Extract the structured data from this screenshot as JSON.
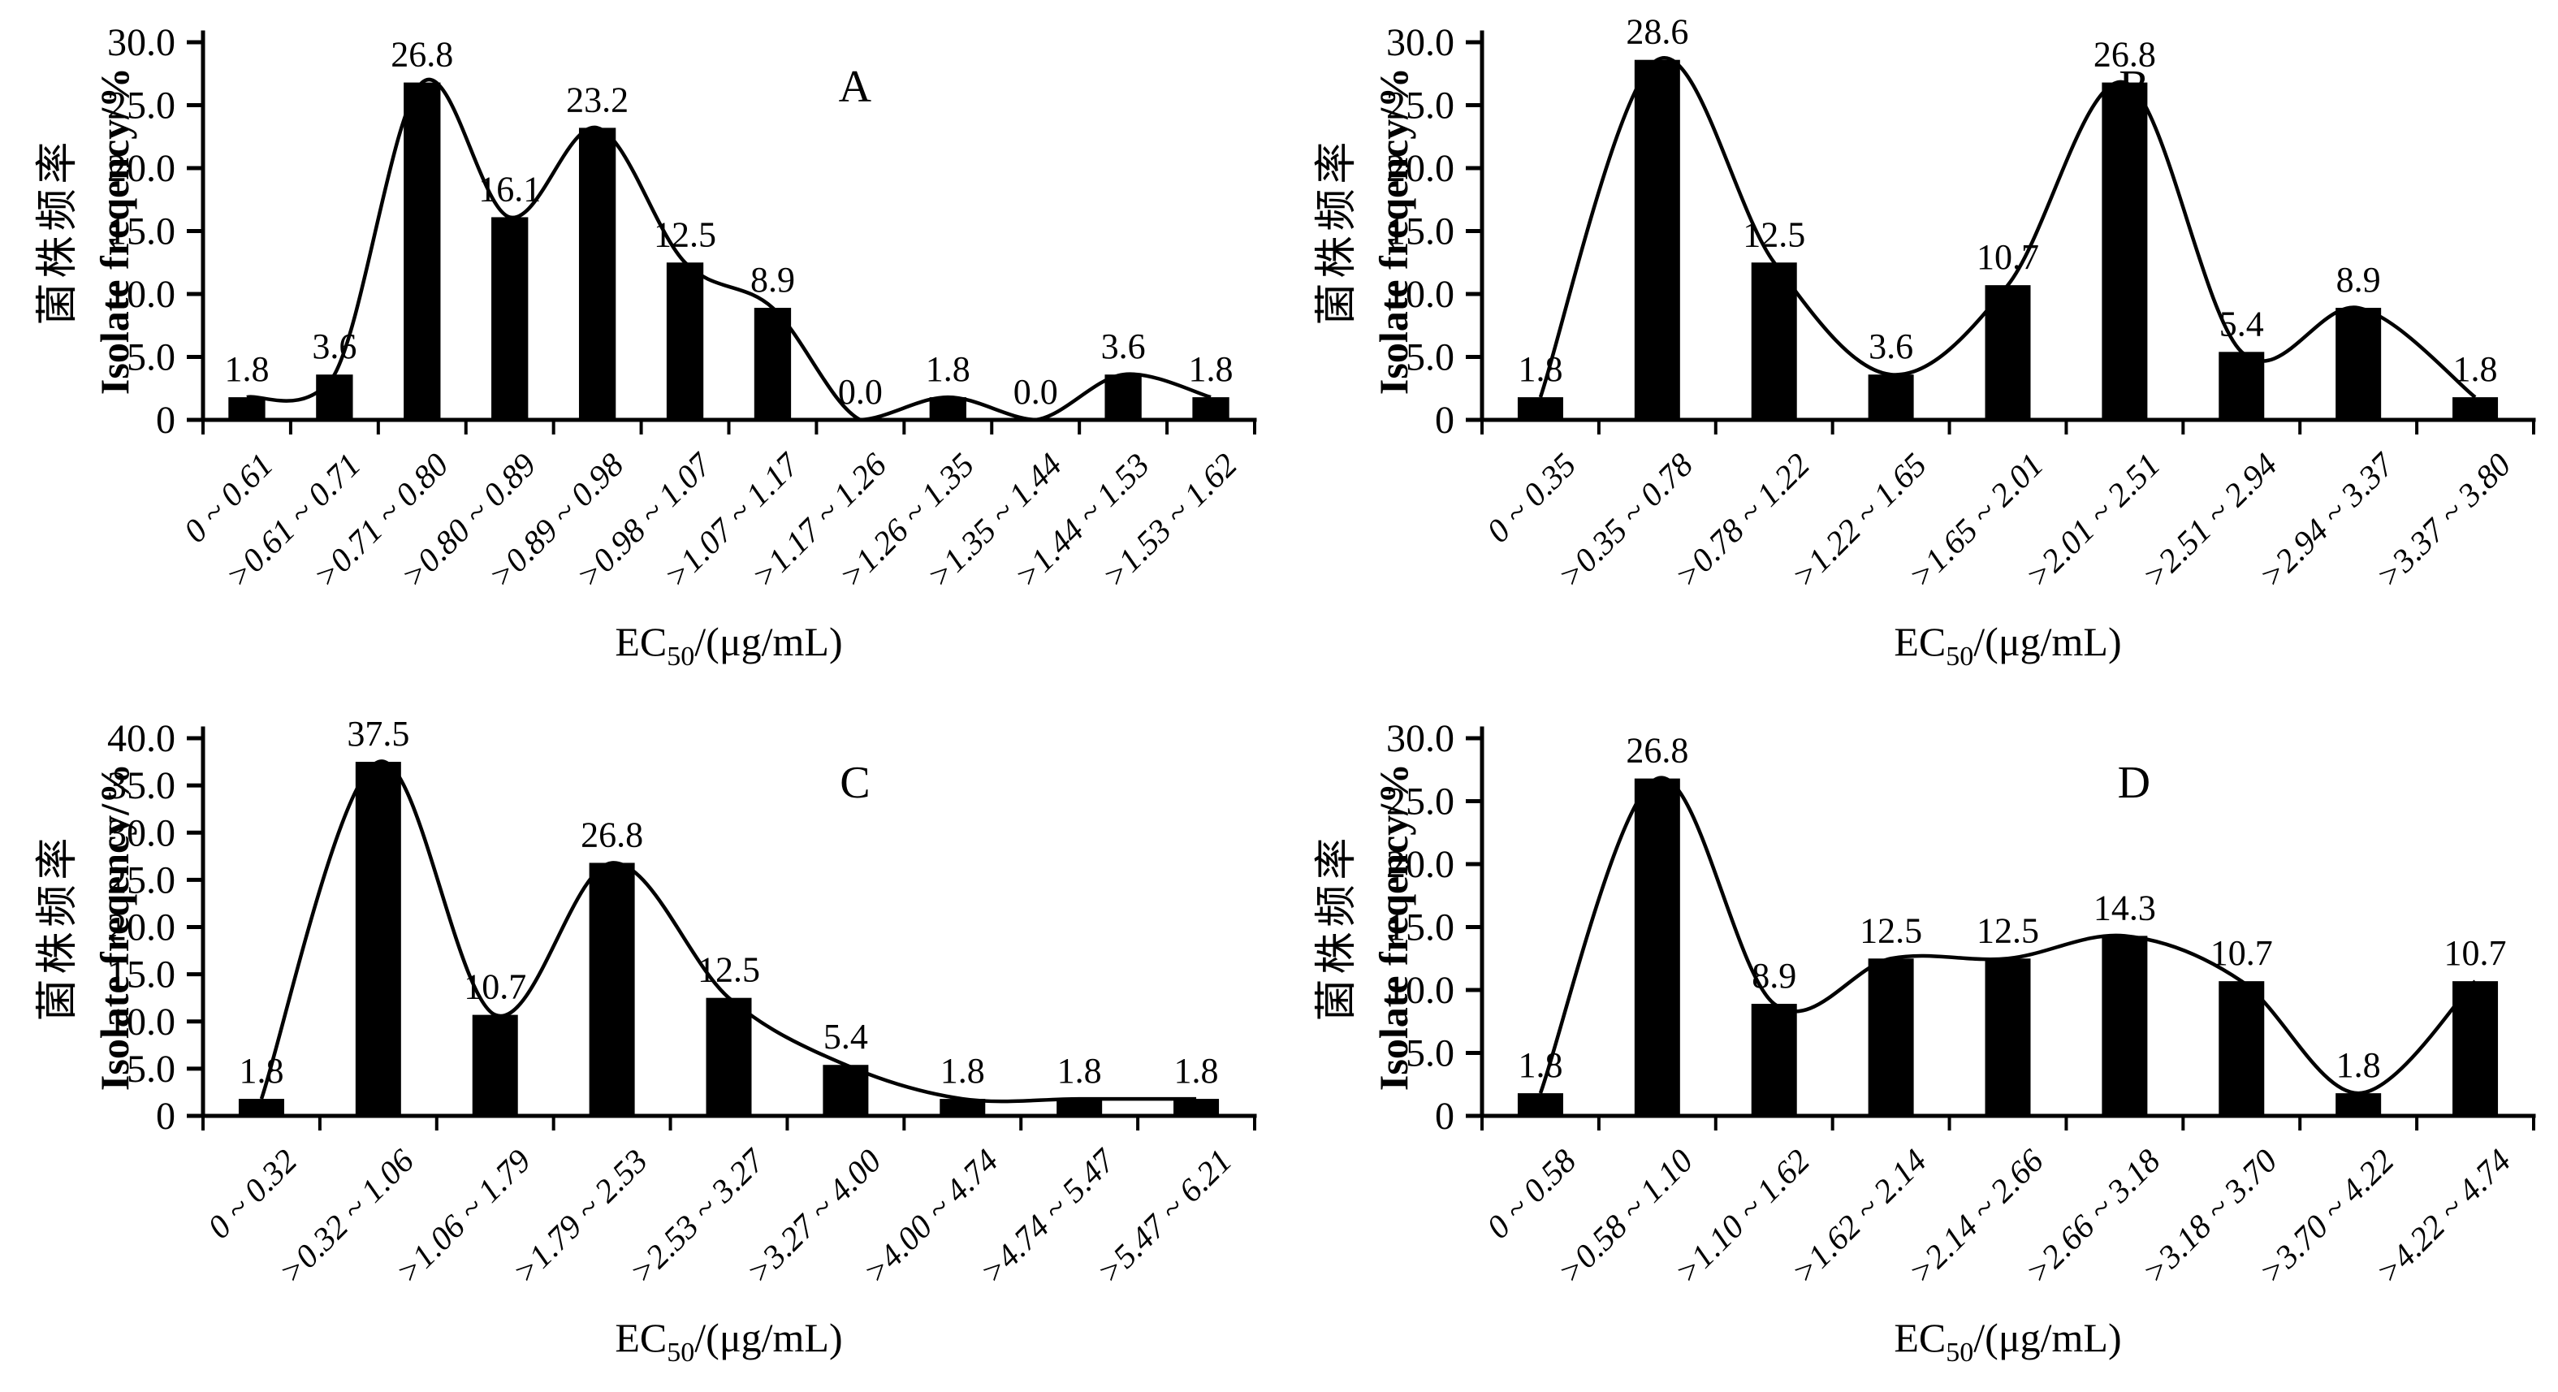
{
  "figure": {
    "background": "#ffffff",
    "colors": {
      "bar": "#000000",
      "curve": "#000000",
      "axis": "#000000",
      "text": "#000000"
    }
  },
  "chart_data": [
    {
      "type": "bar",
      "panel_label": "A",
      "ylabel_cn": "菌株频率",
      "ylabel_en": "Isolate freqency/%",
      "xlabel": {
        "prefix": "EC",
        "sub": "50",
        "suffix": "/(μg/mL)"
      },
      "ylim": [
        0,
        30
      ],
      "ytick_step": 5,
      "ytick_labels": [
        "30.0",
        "25.0",
        "20.0",
        "15.0",
        "10.0",
        "5.0",
        "0"
      ],
      "grid": false,
      "legend": "none",
      "categories": [
        "0 ~ 0.61",
        ">0.61 ~ 0.71",
        ">0.71 ~ 0.80",
        ">0.80 ~ 0.89",
        ">0.89 ~ 0.98",
        ">0.98 ~ 1.07",
        ">1.07 ~ 1.17",
        ">1.17 ~ 1.26",
        ">1.26 ~ 1.35",
        ">1.35 ~ 1.44",
        ">1.44 ~ 1.53",
        ">1.53 ~ 1.62"
      ],
      "values": [
        1.8,
        3.6,
        26.8,
        16.1,
        23.2,
        12.5,
        8.9,
        0.0,
        1.8,
        0.0,
        3.6,
        1.8
      ],
      "value_labels": [
        "1.8",
        "3.6",
        "26.8",
        "16.1",
        "23.2",
        "12.5",
        "8.9",
        "0.0",
        "1.8",
        "0.0",
        "3.6",
        "1.8"
      ]
    },
    {
      "type": "bar",
      "panel_label": "B",
      "ylabel_cn": "菌株频率",
      "ylabel_en": "Isolate freqency/%",
      "xlabel": {
        "prefix": "EC",
        "sub": "50",
        "suffix": "/(μg/mL)"
      },
      "ylim": [
        0,
        30
      ],
      "ytick_step": 5,
      "ytick_labels": [
        "30.0",
        "25.0",
        "20.0",
        "15.0",
        "10.0",
        "5.0",
        "0"
      ],
      "grid": false,
      "legend": "none",
      "categories": [
        "0 ~ 0.35",
        ">0.35 ~ 0.78",
        ">0.78 ~ 1.22",
        ">1.22 ~ 1.65",
        ">1.65 ~ 2.01",
        ">2.01 ~ 2.51",
        ">2.51 ~ 2.94",
        ">2.94 ~ 3.37",
        ">3.37 ~ 3.80"
      ],
      "values": [
        1.8,
        28.6,
        12.5,
        3.6,
        10.7,
        26.8,
        5.4,
        8.9,
        1.8
      ],
      "value_labels": [
        "1.8",
        "28.6",
        "12.5",
        "3.6",
        "10.7",
        "26.8",
        "5.4",
        "8.9",
        "1.8"
      ]
    },
    {
      "type": "bar",
      "panel_label": "C",
      "ylabel_cn": "菌株频率",
      "ylabel_en": "Isolate freqency/%",
      "xlabel": {
        "prefix": "EC",
        "sub": "50",
        "suffix": "/(μg/mL)"
      },
      "ylim": [
        0,
        40
      ],
      "ytick_step": 5,
      "ytick_labels": [
        "40.0",
        "35.0",
        "30.0",
        "25.0",
        "20.0",
        "15.0",
        "10.0",
        "5.0",
        "0"
      ],
      "grid": false,
      "legend": "none",
      "categories": [
        "0 ~ 0.32",
        ">0.32 ~ 1.06",
        ">1.06 ~ 1.79",
        ">1.79 ~ 2.53",
        ">2.53 ~ 3.27",
        ">3.27 ~ 4.00",
        ">4.00 ~ 4.74",
        ">4.74 ~ 5.47",
        ">5.47 ~ 6.21"
      ],
      "values": [
        1.8,
        37.5,
        10.7,
        26.8,
        12.5,
        5.4,
        1.8,
        1.8,
        1.8
      ],
      "value_labels": [
        "1.8",
        "37.5",
        "10.7",
        "26.8",
        "12.5",
        "5.4",
        "1.8",
        "1.8",
        "1.8"
      ]
    },
    {
      "type": "bar",
      "panel_label": "D",
      "ylabel_cn": "菌株频率",
      "ylabel_en": "Isolate freqency/%",
      "xlabel": {
        "prefix": "EC",
        "sub": "50",
        "suffix": "/(μg/mL)"
      },
      "ylim": [
        0,
        30
      ],
      "ytick_step": 5,
      "ytick_labels": [
        "30.0",
        "25.0",
        "20.0",
        "15.0",
        "10.0",
        "5.0",
        "0"
      ],
      "grid": false,
      "legend": "none",
      "categories": [
        "0 ~ 0.58",
        ">0.58 ~ 1.10",
        ">1.10 ~ 1.62",
        ">1.62 ~ 2.14",
        ">2.14 ~ 2.66",
        ">2.66 ~ 3.18",
        ">3.18 ~ 3.70",
        ">3.70 ~ 4.22",
        ">4.22 ~ 4.74"
      ],
      "values": [
        1.8,
        26.8,
        8.9,
        12.5,
        12.5,
        14.3,
        10.7,
        1.8,
        10.7
      ],
      "value_labels": [
        "1.8",
        "26.8",
        "8.9",
        "12.5",
        "12.5",
        "14.3",
        "10.7",
        "1.8",
        "10.7"
      ]
    }
  ]
}
